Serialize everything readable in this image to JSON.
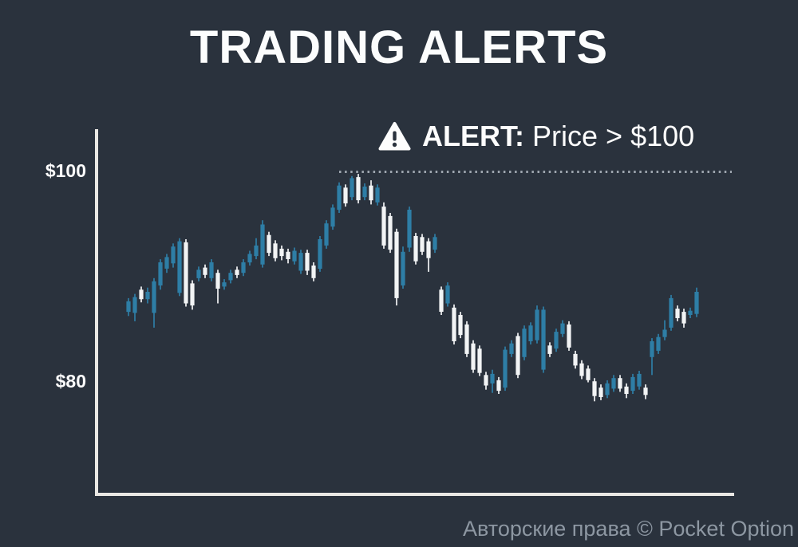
{
  "page": {
    "background_color": "#2a323d"
  },
  "title": "TRADING ALERTS",
  "alert": {
    "icon": "warning-triangle",
    "label_bold": "ALERT:",
    "condition": "Price > $100"
  },
  "watermark": "Авторские права © Pocket Option",
  "chart_data": {
    "type": "candlestick",
    "title": "TRADING ALERTS",
    "annotation": "ALERT: Price > $100",
    "threshold_line": {
      "value": 100,
      "style": "dotted",
      "color": "#9da5ae"
    },
    "y_axis": {
      "ticks": [
        {
          "label": "$100",
          "value": 100
        },
        {
          "label": "$80",
          "value": 80
        }
      ],
      "ylim": [
        69,
        104
      ]
    },
    "x_axis": {
      "tick_labels": []
    },
    "grid": false,
    "legend": "none",
    "colors": {
      "up": "#2e7ea6",
      "down": "#f2f4f5",
      "axis": "#eae8e4"
    },
    "ohlc_format": [
      "open",
      "high",
      "low",
      "close"
    ],
    "candles": [
      [
        86.7,
        88.0,
        86.3,
        87.7
      ],
      [
        86.6,
        88.4,
        85.8,
        88.1
      ],
      [
        88.8,
        89.1,
        87.6,
        87.9
      ],
      [
        87.9,
        89.0,
        87.5,
        88.6
      ],
      [
        86.6,
        89.9,
        85.2,
        89.6
      ],
      [
        89.2,
        91.7,
        88.8,
        91.4
      ],
      [
        90.8,
        92.2,
        90.4,
        91.9
      ],
      [
        91.3,
        93.2,
        90.9,
        92.9
      ],
      [
        88.5,
        93.7,
        88.2,
        93.4
      ],
      [
        93.3,
        93.6,
        87.2,
        87.5
      ],
      [
        89.4,
        89.7,
        86.9,
        87.3
      ],
      [
        89.9,
        91.0,
        89.6,
        90.7
      ],
      [
        90.9,
        91.2,
        89.9,
        90.2
      ],
      [
        89.9,
        91.7,
        89.6,
        91.4
      ],
      [
        90.4,
        90.7,
        87.5,
        88.9
      ],
      [
        89.1,
        89.8,
        88.8,
        89.5
      ],
      [
        89.7,
        90.7,
        89.4,
        90.4
      ],
      [
        90.7,
        91.0,
        89.9,
        90.2
      ],
      [
        90.4,
        91.7,
        90.1,
        91.4
      ],
      [
        91.4,
        92.5,
        91.1,
        92.2
      ],
      [
        92.0,
        93.7,
        91.7,
        93.0
      ],
      [
        91.2,
        95.4,
        90.9,
        95.0
      ],
      [
        94.0,
        94.3,
        92.0,
        92.3
      ],
      [
        93.2,
        93.5,
        91.5,
        91.8
      ],
      [
        92.7,
        93.0,
        91.6,
        92.0
      ],
      [
        92.4,
        92.7,
        91.3,
        91.7
      ],
      [
        91.5,
        92.8,
        91.2,
        92.5
      ],
      [
        90.6,
        92.6,
        90.3,
        92.3
      ],
      [
        92.3,
        92.6,
        90.2,
        90.6
      ],
      [
        91.1,
        91.4,
        89.6,
        89.9
      ],
      [
        90.8,
        93.9,
        90.5,
        93.6
      ],
      [
        93.0,
        95.4,
        92.7,
        95.1
      ],
      [
        94.8,
        96.9,
        94.5,
        96.6
      ],
      [
        96.4,
        99.0,
        96.1,
        98.7
      ],
      [
        98.5,
        98.8,
        96.7,
        97.0
      ],
      [
        97.6,
        99.6,
        97.3,
        99.4
      ],
      [
        99.5,
        99.8,
        97.0,
        97.3
      ],
      [
        97.6,
        98.9,
        97.3,
        98.6
      ],
      [
        98.7,
        99.2,
        96.9,
        97.3
      ],
      [
        97.1,
        98.8,
        96.8,
        98.5
      ],
      [
        96.7,
        97.1,
        92.7,
        93.0
      ],
      [
        95.8,
        96.1,
        92.3,
        92.6
      ],
      [
        94.3,
        94.6,
        87.3,
        88.0
      ],
      [
        89.2,
        92.9,
        88.9,
        92.4
      ],
      [
        92.8,
        96.7,
        92.4,
        96.4
      ],
      [
        93.9,
        94.2,
        91.2,
        91.5
      ],
      [
        93.8,
        94.1,
        92.1,
        92.4
      ],
      [
        93.4,
        93.7,
        90.5,
        91.8
      ],
      [
        92.6,
        94.1,
        92.3,
        93.8
      ],
      [
        88.8,
        89.1,
        86.4,
        86.7
      ],
      [
        87.5,
        89.5,
        87.2,
        89.2
      ],
      [
        87.1,
        87.4,
        83.6,
        83.9
      ],
      [
        86.4,
        86.7,
        84.2,
        84.5
      ],
      [
        85.5,
        85.8,
        82.4,
        82.7
      ],
      [
        83.7,
        84.0,
        80.9,
        81.2
      ],
      [
        83.2,
        83.5,
        80.6,
        80.9
      ],
      [
        80.7,
        81.0,
        79.3,
        79.7
      ],
      [
        79.9,
        81.2,
        79.0,
        80.8
      ],
      [
        80.2,
        80.5,
        78.9,
        79.2
      ],
      [
        79.5,
        83.4,
        79.2,
        83.1
      ],
      [
        82.7,
        84.0,
        82.4,
        83.7
      ],
      [
        84.4,
        84.7,
        80.4,
        80.7
      ],
      [
        82.4,
        85.4,
        82.1,
        85.1
      ],
      [
        83.9,
        85.7,
        83.6,
        85.4
      ],
      [
        84.0,
        87.3,
        83.7,
        86.9
      ],
      [
        81.2,
        87.2,
        80.9,
        86.9
      ],
      [
        83.5,
        83.8,
        82.4,
        82.7
      ],
      [
        83.2,
        85.1,
        82.9,
        84.8
      ],
      [
        84.6,
        85.9,
        84.3,
        85.6
      ],
      [
        85.5,
        85.8,
        83.0,
        83.3
      ],
      [
        82.7,
        83.0,
        81.3,
        81.6
      ],
      [
        81.8,
        82.1,
        80.3,
        80.6
      ],
      [
        81.3,
        81.6,
        80.0,
        80.2
      ],
      [
        80.1,
        80.4,
        78.2,
        78.7
      ],
      [
        79.5,
        79.8,
        78.3,
        78.6
      ],
      [
        78.8,
        80.2,
        78.5,
        79.9
      ],
      [
        79.4,
        80.7,
        79.1,
        80.4
      ],
      [
        80.4,
        80.7,
        79.1,
        79.4
      ],
      [
        79.6,
        79.9,
        78.5,
        78.9
      ],
      [
        79.2,
        80.8,
        78.9,
        80.5
      ],
      [
        79.6,
        81.1,
        79.3,
        80.8
      ],
      [
        79.5,
        79.8,
        78.4,
        78.8
      ],
      [
        82.4,
        84.2,
        80.7,
        83.9
      ],
      [
        83.0,
        84.6,
        82.7,
        84.3
      ],
      [
        84.3,
        85.9,
        84.0,
        85.0
      ],
      [
        85.2,
        88.3,
        84.9,
        88.0
      ],
      [
        87.0,
        87.3,
        85.8,
        86.1
      ],
      [
        86.7,
        87.0,
        85.2,
        85.6
      ],
      [
        86.4,
        87.1,
        86.1,
        86.8
      ],
      [
        86.5,
        89.0,
        86.2,
        88.6
      ]
    ]
  }
}
